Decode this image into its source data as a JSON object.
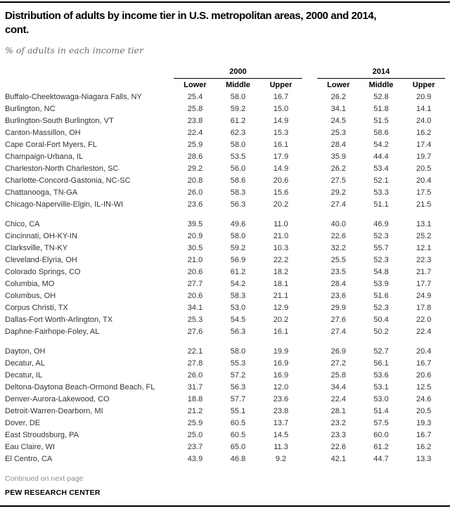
{
  "header": {
    "title_line1": "Distribution of adults by income tier in U.S. metropolitan areas, 2000 and 2014,",
    "title_line2": "cont.",
    "subtitle": "% of adults in each income tier"
  },
  "table": {
    "year_groups": [
      "2000",
      "2014"
    ],
    "columns": [
      "Lower",
      "Middle",
      "Upper"
    ],
    "groups": [
      {
        "rows": [
          {
            "name": "Buffalo-Cheektowaga-Niagara Falls, NY",
            "v2000": [
              "25.4",
              "58.0",
              "16.7"
            ],
            "v2014": [
              "26.2",
              "52.8",
              "20.9"
            ]
          },
          {
            "name": "Burlington, NC",
            "v2000": [
              "25.8",
              "59.2",
              "15.0"
            ],
            "v2014": [
              "34.1",
              "51.8",
              "14.1"
            ]
          },
          {
            "name": "Burlington-South Burlington, VT",
            "v2000": [
              "23.8",
              "61.2",
              "14.9"
            ],
            "v2014": [
              "24.5",
              "51.5",
              "24.0"
            ]
          },
          {
            "name": "Canton-Massillon, OH",
            "v2000": [
              "22.4",
              "62.3",
              "15.3"
            ],
            "v2014": [
              "25.3",
              "58.6",
              "16.2"
            ]
          },
          {
            "name": "Cape Coral-Fort Myers, FL",
            "v2000": [
              "25.9",
              "58.0",
              "16.1"
            ],
            "v2014": [
              "28.4",
              "54.2",
              "17.4"
            ]
          },
          {
            "name": "Champaign-Urbana, IL",
            "v2000": [
              "28.6",
              "53.5",
              "17.9"
            ],
            "v2014": [
              "35.9",
              "44.4",
              "19.7"
            ]
          },
          {
            "name": "Charleston-North Charleston, SC",
            "v2000": [
              "29.2",
              "56.0",
              "14.9"
            ],
            "v2014": [
              "26.2",
              "53.4",
              "20.5"
            ]
          },
          {
            "name": "Charlotte-Concord-Gastonia, NC-SC",
            "v2000": [
              "20.8",
              "58.6",
              "20.6"
            ],
            "v2014": [
              "27.5",
              "52.1",
              "20.4"
            ]
          },
          {
            "name": "Chattanooga, TN-GA",
            "v2000": [
              "26.0",
              "58.3",
              "15.6"
            ],
            "v2014": [
              "29.2",
              "53.3",
              "17.5"
            ]
          },
          {
            "name": "Chicago-Naperville-Elgin, IL-IN-WI",
            "v2000": [
              "23.6",
              "56.3",
              "20.2"
            ],
            "v2014": [
              "27.4",
              "51.1",
              "21.5"
            ]
          }
        ]
      },
      {
        "rows": [
          {
            "name": "Chico, CA",
            "v2000": [
              "39.5",
              "49.6",
              "11.0"
            ],
            "v2014": [
              "40.0",
              "46.9",
              "13.1"
            ]
          },
          {
            "name": "Cincinnati, OH-KY-IN",
            "v2000": [
              "20.9",
              "58.0",
              "21.0"
            ],
            "v2014": [
              "22.6",
              "52.3",
              "25.2"
            ]
          },
          {
            "name": "Clarksville, TN-KY",
            "v2000": [
              "30.5",
              "59.2",
              "10.3"
            ],
            "v2014": [
              "32.2",
              "55.7",
              "12.1"
            ]
          },
          {
            "name": "Cleveland-Elyria, OH",
            "v2000": [
              "21.0",
              "56.9",
              "22.2"
            ],
            "v2014": [
              "25.5",
              "52.3",
              "22.3"
            ]
          },
          {
            "name": "Colorado Springs, CO",
            "v2000": [
              "20.6",
              "61.2",
              "18.2"
            ],
            "v2014": [
              "23.5",
              "54.8",
              "21.7"
            ]
          },
          {
            "name": "Columbia, MO",
            "v2000": [
              "27.7",
              "54.2",
              "18.1"
            ],
            "v2014": [
              "28.4",
              "53.9",
              "17.7"
            ]
          },
          {
            "name": "Columbus, OH",
            "v2000": [
              "20.6",
              "58.3",
              "21.1"
            ],
            "v2014": [
              "23.6",
              "51.6",
              "24.9"
            ]
          },
          {
            "name": "Corpus Christi, TX",
            "v2000": [
              "34.1",
              "53.0",
              "12.9"
            ],
            "v2014": [
              "29.9",
              "52.3",
              "17.8"
            ]
          },
          {
            "name": "Dallas-Fort Worth-Arlington, TX",
            "v2000": [
              "25.3",
              "54.5",
              "20.2"
            ],
            "v2014": [
              "27.6",
              "50.4",
              "22.0"
            ]
          },
          {
            "name": "Daphne-Fairhope-Foley, AL",
            "v2000": [
              "27.6",
              "56.3",
              "16.1"
            ],
            "v2014": [
              "27.4",
              "50.2",
              "22.4"
            ]
          }
        ]
      },
      {
        "rows": [
          {
            "name": "Dayton, OH",
            "v2000": [
              "22.1",
              "58.0",
              "19.9"
            ],
            "v2014": [
              "26.9",
              "52.7",
              "20.4"
            ]
          },
          {
            "name": "Decatur, AL",
            "v2000": [
              "27.8",
              "55.3",
              "16.9"
            ],
            "v2014": [
              "27.2",
              "56.1",
              "16.7"
            ]
          },
          {
            "name": "Decatur, IL",
            "v2000": [
              "26.0",
              "57.2",
              "16.9"
            ],
            "v2014": [
              "25.8",
              "53.6",
              "20.6"
            ]
          },
          {
            "name": "Deltona-Daytona Beach-Ormond Beach, FL",
            "v2000": [
              "31.7",
              "56.3",
              "12.0"
            ],
            "v2014": [
              "34.4",
              "53.1",
              "12.5"
            ]
          },
          {
            "name": "Denver-Aurora-Lakewood, CO",
            "v2000": [
              "18.8",
              "57.7",
              "23.6"
            ],
            "v2014": [
              "22.4",
              "53.0",
              "24.6"
            ]
          },
          {
            "name": "Detroit-Warren-Dearborn, MI",
            "v2000": [
              "21.2",
              "55.1",
              "23.8"
            ],
            "v2014": [
              "28.1",
              "51.4",
              "20.5"
            ]
          },
          {
            "name": "Dover, DE",
            "v2000": [
              "25.9",
              "60.5",
              "13.7"
            ],
            "v2014": [
              "23.2",
              "57.5",
              "19.3"
            ]
          },
          {
            "name": "East Stroudsburg, PA",
            "v2000": [
              "25.0",
              "60.5",
              "14.5"
            ],
            "v2014": [
              "23.3",
              "60.0",
              "16.7"
            ]
          },
          {
            "name": "Eau Claire, WI",
            "v2000": [
              "23.7",
              "65.0",
              "11.3"
            ],
            "v2014": [
              "22.6",
              "61.2",
              "16.2"
            ]
          },
          {
            "name": "El Centro, CA",
            "v2000": [
              "43.9",
              "46.8",
              "9.2"
            ],
            "v2014": [
              "42.1",
              "44.7",
              "13.3"
            ]
          }
        ]
      }
    ]
  },
  "footer": {
    "continued": "Continued on next page",
    "source": "PEW RESEARCH CENTER"
  },
  "colors": {
    "rule_black": "#000000",
    "body_text": "#333333",
    "muted_gray": "#8f8f8f",
    "subtitle_gray": "#6e6e6e"
  }
}
